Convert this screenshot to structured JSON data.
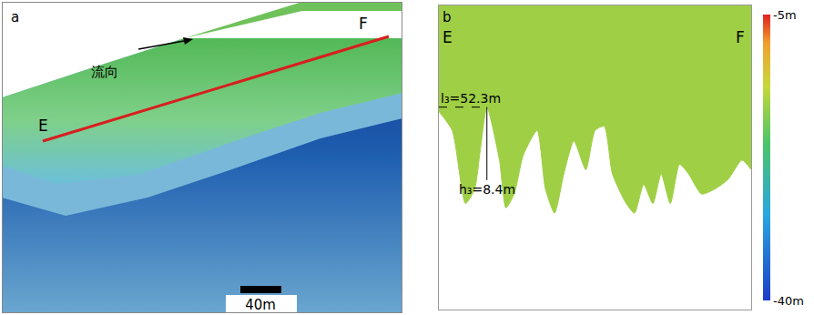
{
  "map": {
    "label": "a",
    "flow_label": "流向",
    "start_label": "E",
    "end_label": "F",
    "scale_bar_label": "40m"
  },
  "chart_data": {
    "type": "area",
    "panel_label": "b",
    "start_label": "E",
    "end_label": "F",
    "x": [
      0,
      14.6,
      29,
      39,
      45,
      52.3,
      66,
      73,
      82,
      92,
      107,
      116,
      126,
      136,
      147,
      160,
      170,
      180,
      189,
      204,
      213,
      223,
      233,
      242,
      252,
      262,
      272,
      286,
      301,
      315,
      330,
      340
    ],
    "values": [
      -17.2,
      -19.4,
      -27.8,
      -26.1,
      -21.7,
      -16.7,
      -22.8,
      -28.3,
      -26.7,
      -22.2,
      -19.4,
      -26.1,
      -28.9,
      -24.4,
      -20.6,
      -23.9,
      -19.4,
      -18.9,
      -24.4,
      -27.8,
      -28.9,
      -25.6,
      -27.8,
      -24.4,
      -27.8,
      -23.3,
      -24.4,
      -26.7,
      -26.1,
      -25,
      -22.8,
      -23.9
    ],
    "color": "#9fcf45",
    "xlim": [
      0,
      340
    ],
    "ylim": [
      -40,
      -5
    ],
    "tick_labels": false,
    "grid": false,
    "dimensions": [
      {
        "label": "l₃=52.3m",
        "kind": "horizontal",
        "from": 0,
        "to": 52.3,
        "at": -16.7
      },
      {
        "label": "h₃=8.4m",
        "kind": "vertical",
        "at": 52.3,
        "from": -16.7,
        "to": -25.1
      }
    ],
    "colorbar": {
      "range": [
        -40,
        -5
      ],
      "ticks": [
        {
          "value": -5,
          "label": "-5m"
        },
        {
          "value": -40,
          "label": "-40m"
        }
      ]
    }
  }
}
